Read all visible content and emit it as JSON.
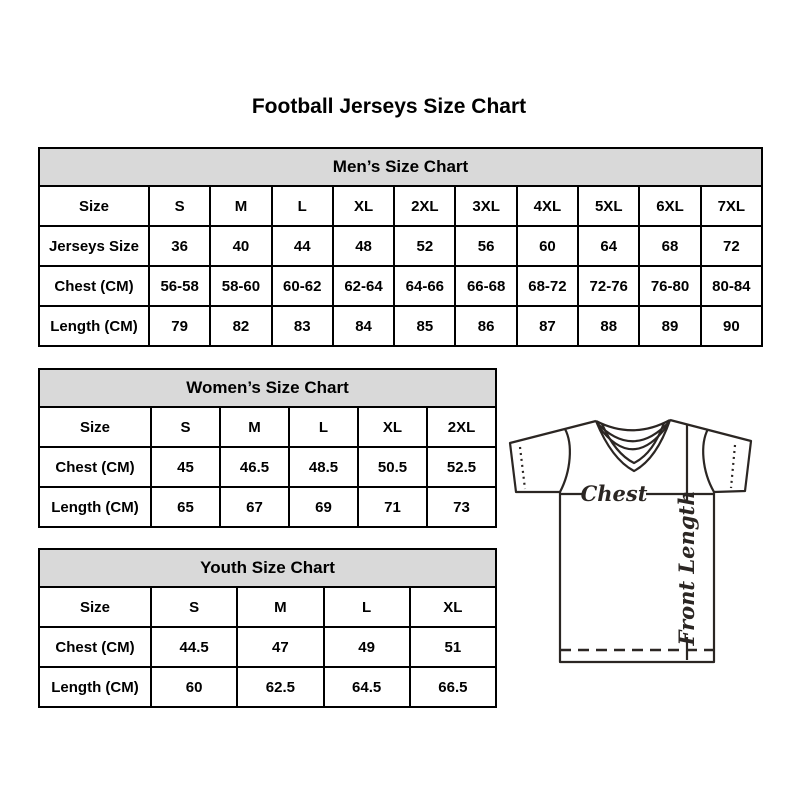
{
  "page": {
    "title": "Football Jerseys Size Chart"
  },
  "tables": {
    "men": {
      "title": "Men’s Size Chart",
      "rows": [
        [
          "Size",
          "S",
          "M",
          "L",
          "XL",
          "2XL",
          "3XL",
          "4XL",
          "5XL",
          "6XL",
          "7XL"
        ],
        [
          "Jerseys Size",
          "36",
          "40",
          "44",
          "48",
          "52",
          "56",
          "60",
          "64",
          "68",
          "72"
        ],
        [
          "Chest (CM)",
          "56-58",
          "58-60",
          "60-62",
          "62-64",
          "64-66",
          "66-68",
          "68-72",
          "72-76",
          "76-80",
          "80-84"
        ],
        [
          "Length (CM)",
          "79",
          "82",
          "83",
          "84",
          "85",
          "86",
          "87",
          "88",
          "89",
          "90"
        ]
      ]
    },
    "women": {
      "title": "Women’s Size Chart",
      "rows": [
        [
          "Size",
          "S",
          "M",
          "L",
          "XL",
          "2XL"
        ],
        [
          "Chest (CM)",
          "45",
          "46.5",
          "48.5",
          "50.5",
          "52.5"
        ],
        [
          "Length (CM)",
          "65",
          "67",
          "69",
          "71",
          "73"
        ]
      ]
    },
    "youth": {
      "title": "Youth Size Chart",
      "rows": [
        [
          "Size",
          "S",
          "M",
          "L",
          "XL"
        ],
        [
          "Chest (CM)",
          "44.5",
          "47",
          "49",
          "51"
        ],
        [
          "Length (CM)",
          "60",
          "62.5",
          "64.5",
          "66.5"
        ]
      ]
    }
  },
  "diagram": {
    "chest_label": "Chest",
    "front_length_label": "Front Length"
  },
  "colors": {
    "table_header_bg": "#d9d9d9",
    "table_border": "#000000",
    "diagram_line": "#2b2623",
    "text": "#000000"
  },
  "chart_data": [
    {
      "type": "table",
      "title": "Men’s Size Chart",
      "columns": [
        "Size",
        "S",
        "M",
        "L",
        "XL",
        "2XL",
        "3XL",
        "4XL",
        "5XL",
        "6XL",
        "7XL"
      ],
      "rows": [
        [
          "Jerseys Size",
          "36",
          "40",
          "44",
          "48",
          "52",
          "56",
          "60",
          "64",
          "68",
          "72"
        ],
        [
          "Chest (CM)",
          "56-58",
          "58-60",
          "60-62",
          "62-64",
          "64-66",
          "66-68",
          "68-72",
          "72-76",
          "76-80",
          "80-84"
        ],
        [
          "Length (CM)",
          "79",
          "82",
          "83",
          "84",
          "85",
          "86",
          "87",
          "88",
          "89",
          "90"
        ]
      ]
    },
    {
      "type": "table",
      "title": "Women’s Size Chart",
      "columns": [
        "Size",
        "S",
        "M",
        "L",
        "XL",
        "2XL"
      ],
      "rows": [
        [
          "Chest (CM)",
          "45",
          "46.5",
          "48.5",
          "50.5",
          "52.5"
        ],
        [
          "Length (CM)",
          "65",
          "67",
          "69",
          "71",
          "73"
        ]
      ]
    },
    {
      "type": "table",
      "title": "Youth Size Chart",
      "columns": [
        "Size",
        "S",
        "M",
        "L",
        "XL"
      ],
      "rows": [
        [
          "Chest (CM)",
          "44.5",
          "47",
          "49",
          "51"
        ],
        [
          "Length (CM)",
          "60",
          "62.5",
          "64.5",
          "66.5"
        ]
      ]
    }
  ]
}
